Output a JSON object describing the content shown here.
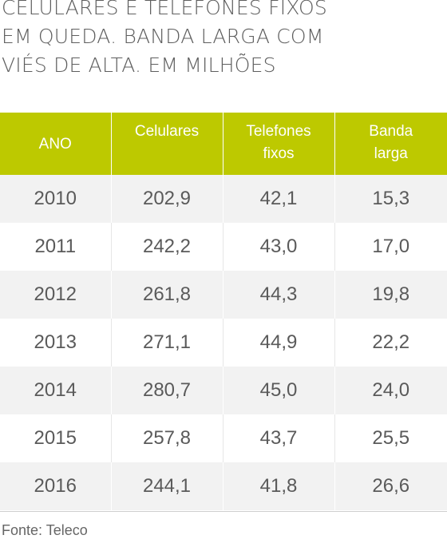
{
  "title_lines": [
    "CELULARES E TELEFONES FIXOS",
    "EM QUEDA. BANDA LARGA COM",
    "VIÉS DE ALTA. EM MILHÕES"
  ],
  "source": "Fonte: Teleco",
  "colors": {
    "header_bg": "#bdc900",
    "header_text": "#ffffff",
    "row_stripe": "#f2f2f2",
    "text": "#555555"
  },
  "chart_data": {
    "type": "table",
    "title": "CELULARES E TELEFONES FIXOS EM QUEDA. BANDA LARGA COM VIÉS DE ALTA. EM MILHÕES",
    "columns": [
      "ANO",
      "Celulares",
      "Telefones fixos",
      "Banda larga"
    ],
    "header_lines": [
      [
        "ANO"
      ],
      [
        "Celulares"
      ],
      [
        "Telefones",
        "fixos"
      ],
      [
        "Banda",
        "larga"
      ]
    ],
    "rows": [
      [
        "2010",
        "202,9",
        "42,1",
        "15,3"
      ],
      [
        "2011",
        "242,2",
        "43,0",
        "17,0"
      ],
      [
        "2012",
        "261,8",
        "44,3",
        "19,8"
      ],
      [
        "2013",
        "271,1",
        "44,9",
        "22,2"
      ],
      [
        "2014",
        "280,7",
        "45,0",
        "24,0"
      ],
      [
        "2015",
        "257,8",
        "43,7",
        "25,5"
      ],
      [
        "2016",
        "244,1",
        "41,8",
        "26,6"
      ]
    ],
    "x": [
      2010,
      2011,
      2012,
      2013,
      2014,
      2015,
      2016
    ],
    "series": [
      {
        "name": "Celulares",
        "values": [
          202.9,
          242.2,
          261.8,
          271.1,
          280.7,
          257.8,
          244.1
        ]
      },
      {
        "name": "Telefones fixos",
        "values": [
          42.1,
          43.0,
          44.3,
          44.9,
          45.0,
          43.7,
          41.8
        ]
      },
      {
        "name": "Banda larga",
        "values": [
          15.3,
          17.0,
          19.8,
          22.2,
          24.0,
          25.5,
          26.6
        ]
      }
    ]
  }
}
